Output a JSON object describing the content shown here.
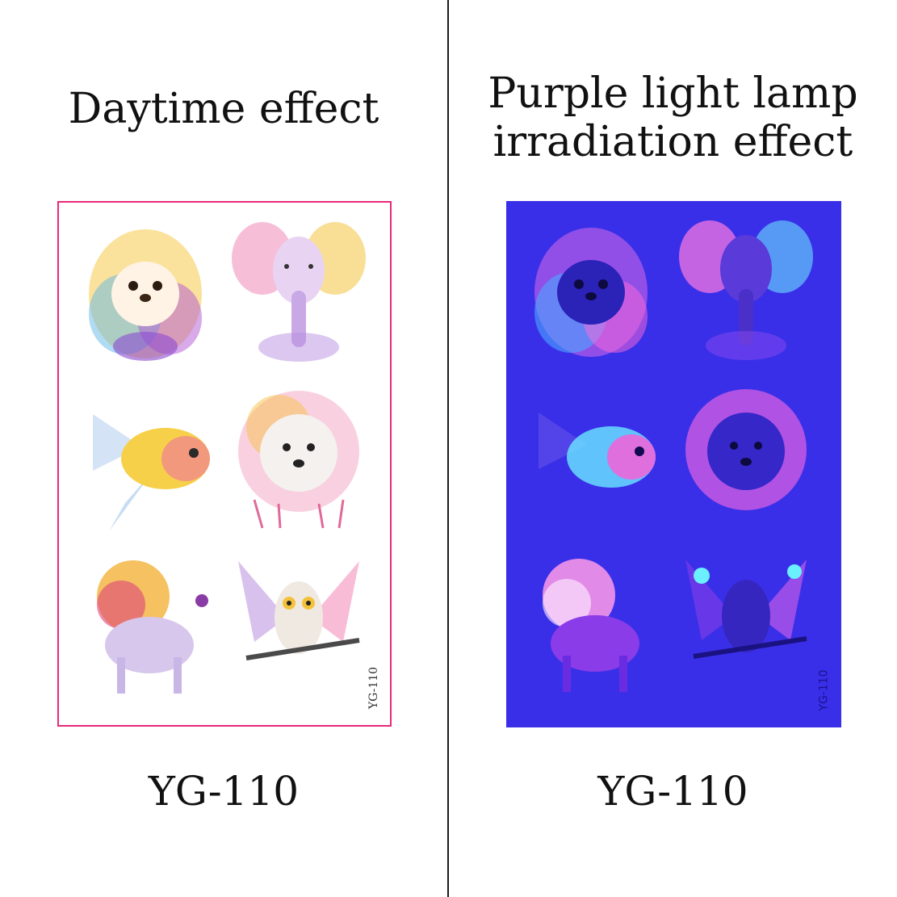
{
  "left": {
    "heading": "Daytime effect",
    "code": "YG-110",
    "sheet_code": "YG-110"
  },
  "right": {
    "heading_line1": "Purple light lamp",
    "heading_line2": "irradiation effect",
    "code": "YG-110",
    "sheet_code": "YG-110"
  },
  "stickers": [
    "hedgehog",
    "elephant",
    "fish",
    "dog",
    "lion",
    "owl"
  ],
  "colors": {
    "sheet_border": "#e8297a",
    "uv_background": "#3a2fe8"
  }
}
